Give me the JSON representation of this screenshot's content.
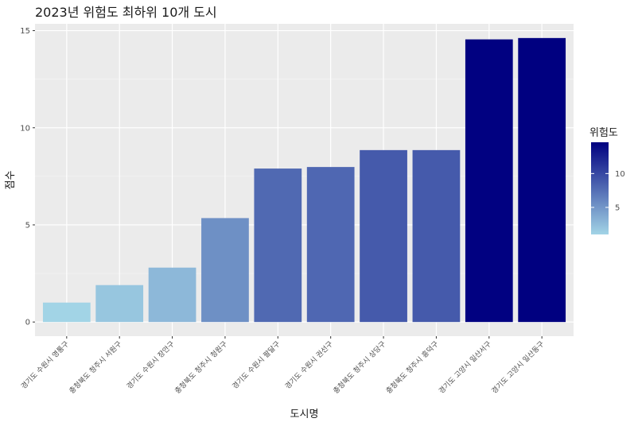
{
  "chart_data": {
    "type": "bar",
    "title": "2023년 위험도 최하위 10개 도시",
    "xlabel": "도시명",
    "ylabel": "점수",
    "categories": [
      "경기도 수원시 영통구",
      "충청북도 청주시 서원구",
      "경기도 수원시 장안구",
      "충청북도 청주시 청원구",
      "경기도 수원시 팔달구",
      "경기도 수원시 권선구",
      "충청북도 청주시 상당구",
      "충청북도 청주시 흥덕구",
      "경기도 고양시 일산서구",
      "경기도 고양시 일산동구"
    ],
    "values": [
      1.0,
      1.9,
      2.8,
      5.35,
      7.9,
      7.98,
      8.85,
      8.85,
      14.55,
      14.62
    ],
    "ylim": [
      -0.73,
      15.35
    ],
    "yticks": [
      0,
      5,
      10,
      15
    ],
    "grid": true,
    "legend": {
      "title": "위험도",
      "placement": "right",
      "ticks": [
        5,
        10
      ],
      "low_color": "#a2d4e6",
      "high_color": "#000080"
    }
  }
}
